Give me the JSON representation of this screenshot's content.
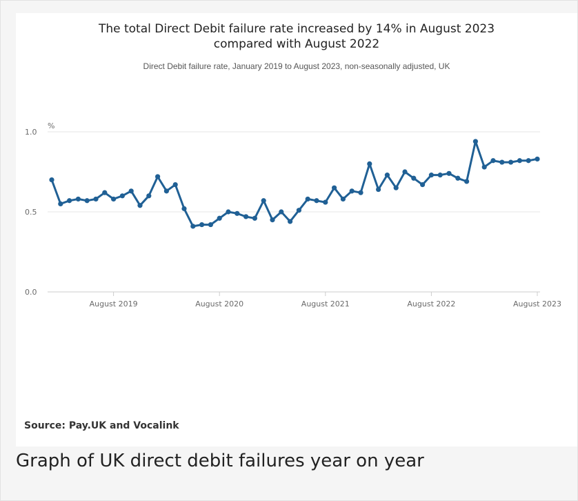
{
  "chart_data": {
    "type": "line",
    "title": "The total Direct Debit failure rate increased by 14% in August 2023\ncompared with August 2022",
    "subtitle": "Direct Debit failure rate, January 2019 to August 2023, non-seasonally adjusted, UK",
    "ylabel": "%",
    "xlabel": "",
    "ylim": [
      0,
      1.0
    ],
    "yticks": [
      0.0,
      0.5,
      1.0
    ],
    "ytick_labels": [
      "0.0",
      "0.5",
      "1.0"
    ],
    "xtick_labels": [
      "August 2019",
      "August 2020",
      "August 2021",
      "August 2022",
      "August 2023"
    ],
    "grid": "horizontal",
    "legend": "none",
    "line_color": "#206095",
    "x": [
      "January 2019",
      "February 2019",
      "March 2019",
      "April 2019",
      "May 2019",
      "June 2019",
      "July 2019",
      "August 2019",
      "September 2019",
      "October 2019",
      "November 2019",
      "December 2019",
      "January 2020",
      "February 2020",
      "March 2020",
      "April 2020",
      "May 2020",
      "June 2020",
      "July 2020",
      "August 2020",
      "September 2020",
      "October 2020",
      "November 2020",
      "December 2020",
      "January 2021",
      "February 2021",
      "March 2021",
      "April 2021",
      "May 2021",
      "June 2021",
      "July 2021",
      "August 2021",
      "September 2021",
      "October 2021",
      "November 2021",
      "December 2021",
      "January 2022",
      "February 2022",
      "March 2022",
      "April 2022",
      "May 2022",
      "June 2022",
      "July 2022",
      "August 2022",
      "September 2022",
      "October 2022",
      "November 2022",
      "December 2022",
      "January 2023",
      "February 2023",
      "March 2023",
      "April 2023",
      "May 2023",
      "June 2023",
      "July 2023",
      "August 2023"
    ],
    "series": [
      {
        "values": [
          0.7,
          0.55,
          0.57,
          0.58,
          0.57,
          0.58,
          0.62,
          0.58,
          0.6,
          0.63,
          0.54,
          0.6,
          0.72,
          0.63,
          0.67,
          0.52,
          0.41,
          0.42,
          0.42,
          0.46,
          0.5,
          0.49,
          0.47,
          0.46,
          0.57,
          0.45,
          0.5,
          0.44,
          0.51,
          0.58,
          0.57,
          0.56,
          0.65,
          0.58,
          0.63,
          0.62,
          0.8,
          0.64,
          0.73,
          0.65,
          0.75,
          0.71,
          0.67,
          0.73,
          0.73,
          0.74,
          0.71,
          0.69,
          0.94,
          0.78,
          0.82,
          0.81,
          0.81,
          0.82,
          0.82,
          0.83
        ]
      }
    ]
  },
  "footer": {
    "source": "Source: Pay.UK and Vocalink"
  },
  "caption": "Graph of UK direct debit failures year on year"
}
